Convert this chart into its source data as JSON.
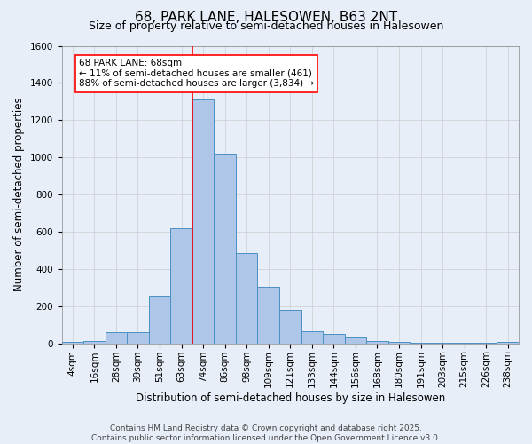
{
  "title": "68, PARK LANE, HALESOWEN, B63 2NT",
  "subtitle": "Size of property relative to semi-detached houses in Halesowen",
  "xlabel": "Distribution of semi-detached houses by size in Halesowen",
  "ylabel": "Number of semi-detached properties",
  "categories": [
    "4sqm",
    "16sqm",
    "28sqm",
    "39sqm",
    "51sqm",
    "63sqm",
    "74sqm",
    "86sqm",
    "98sqm",
    "109sqm",
    "121sqm",
    "133sqm",
    "144sqm",
    "156sqm",
    "168sqm",
    "180sqm",
    "191sqm",
    "203sqm",
    "215sqm",
    "226sqm",
    "238sqm"
  ],
  "values": [
    10,
    15,
    60,
    60,
    255,
    620,
    1310,
    1020,
    485,
    305,
    180,
    65,
    50,
    30,
    15,
    10,
    5,
    3,
    3,
    3,
    10
  ],
  "bar_color": "#aec6e8",
  "bar_edge_color": "#4a90c4",
  "reference_line_color": "red",
  "annotation_text": "68 PARK LANE: 68sqm\n← 11% of semi-detached houses are smaller (461)\n88% of semi-detached houses are larger (3,834) →",
  "annotation_box_color": "white",
  "annotation_box_edge_color": "red",
  "ylim": [
    0,
    1600
  ],
  "yticks": [
    0,
    200,
    400,
    600,
    800,
    1000,
    1200,
    1400,
    1600
  ],
  "grid_color": "#cccccc",
  "background_color": "#e8eef8",
  "footer_line1": "Contains HM Land Registry data © Crown copyright and database right 2025.",
  "footer_line2": "Contains public sector information licensed under the Open Government Licence v3.0.",
  "title_fontsize": 11,
  "subtitle_fontsize": 9,
  "axis_label_fontsize": 8.5,
  "tick_fontsize": 7.5,
  "annotation_fontsize": 7.5,
  "footer_fontsize": 6.5
}
